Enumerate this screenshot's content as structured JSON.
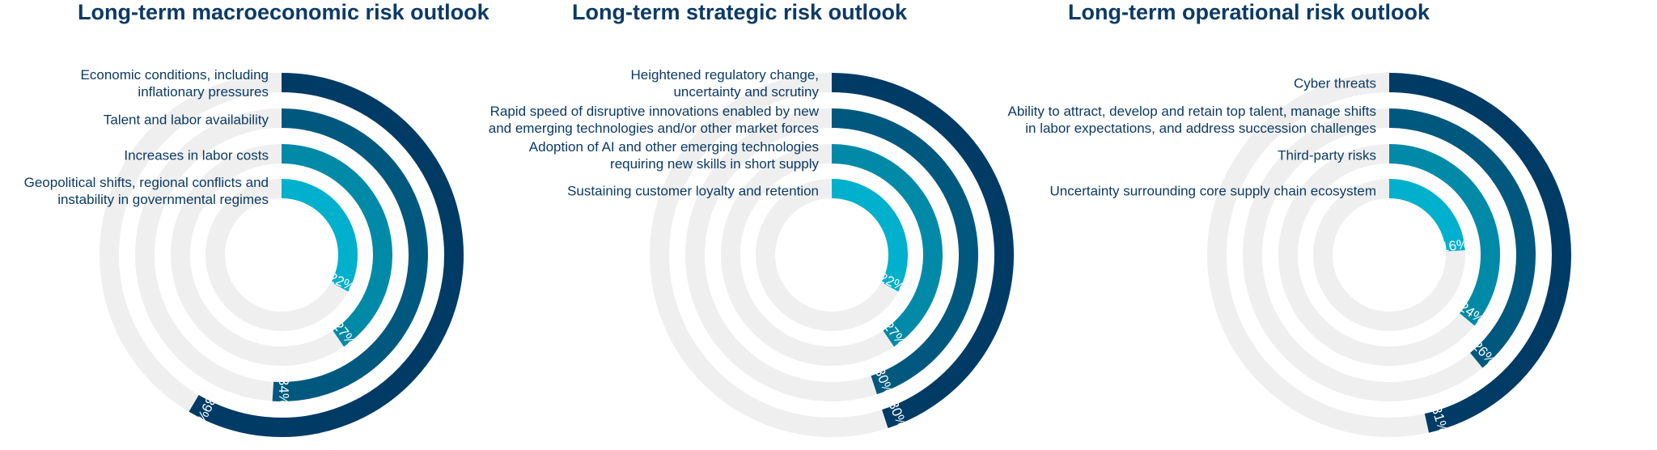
{
  "chart_data": [
    {
      "type": "radial-bar",
      "title": "Long-term macroeconomic risk outlook",
      "categories": [
        "Economic conditions, including\ninflationary pressures",
        "Talent and labor availability",
        "Increases in labor costs",
        "Geopolitical shifts, regional conflicts and\ninstability in governmental regimes"
      ],
      "values": [
        39,
        34,
        27,
        22
      ],
      "value_labels": [
        "39%",
        "34%",
        "27%",
        "22%"
      ],
      "unit": "%",
      "scale_max": 50
    },
    {
      "type": "radial-bar",
      "title": "Long-term strategic risk outlook",
      "categories": [
        "Heightened regulatory change,\nuncertainty and scrutiny",
        "Rapid speed of disruptive innovations enabled by new\nand emerging technologies and/or other market forces",
        "Adoption of AI and other emerging technologies\nrequiring new skills in short supply",
        "Sustaining customer loyalty and retention"
      ],
      "values": [
        30,
        30,
        27,
        22
      ],
      "value_labels": [
        "30%",
        "30%",
        "27%",
        "22%"
      ],
      "unit": "%",
      "scale_max": 50
    },
    {
      "type": "radial-bar",
      "title": "Long-term operational risk outlook",
      "categories": [
        "Cyber threats",
        "Ability to attract, develop and retain top talent, manage shifts\nin labor expectations, and address succession challenges",
        "Third-party risks",
        "Uncertainty surrounding core supply chain ecosystem"
      ],
      "values": [
        31,
        26,
        24,
        16
      ],
      "value_labels": [
        "31%",
        "26%",
        "24%",
        "16%"
      ],
      "unit": "%",
      "scale_max": 50
    }
  ],
  "colors": {
    "title": "#0b3a66",
    "label": "#0b3a66",
    "track": "#efefef",
    "rings": [
      "#003b66",
      "#00587f",
      "#008aa8",
      "#00b0cd"
    ]
  }
}
